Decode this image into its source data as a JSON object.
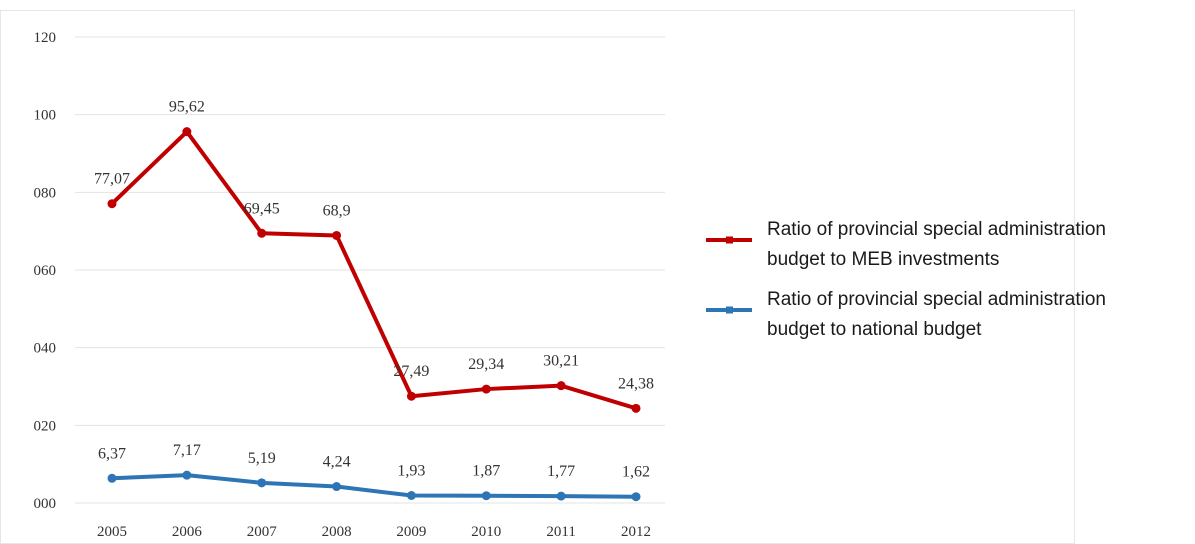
{
  "chart_data": {
    "type": "line",
    "categories": [
      "2005",
      "2006",
      "2007",
      "2008",
      "2009",
      "2010",
      "2011",
      "2012"
    ],
    "y_ticks": [
      "000",
      "020",
      "040",
      "060",
      "080",
      "100",
      "120"
    ],
    "ylim": [
      0,
      120
    ],
    "grid": true,
    "legend_position": "right",
    "series": [
      {
        "name_lines": [
          "Ratio of provincial special administration",
          "budget to MEB investments"
        ],
        "values": [
          77.07,
          95.62,
          69.45,
          68.9,
          27.49,
          29.34,
          30.21,
          24.38
        ],
        "labels": [
          "77,07",
          "95,62",
          "69,45",
          "68,9",
          "27,49",
          "29,34",
          "30,21",
          "24,38"
        ],
        "color": "#c00000"
      },
      {
        "name_lines": [
          "Ratio of provincial special administration",
          "budget to national budget"
        ],
        "values": [
          6.37,
          7.17,
          5.19,
          4.24,
          1.93,
          1.87,
          1.77,
          1.62
        ],
        "labels": [
          "6,37",
          "7,17",
          "5,19",
          "4,24",
          "1,93",
          "1,87",
          "1,77",
          "1,62"
        ],
        "color": "#2e75b6"
      }
    ]
  }
}
